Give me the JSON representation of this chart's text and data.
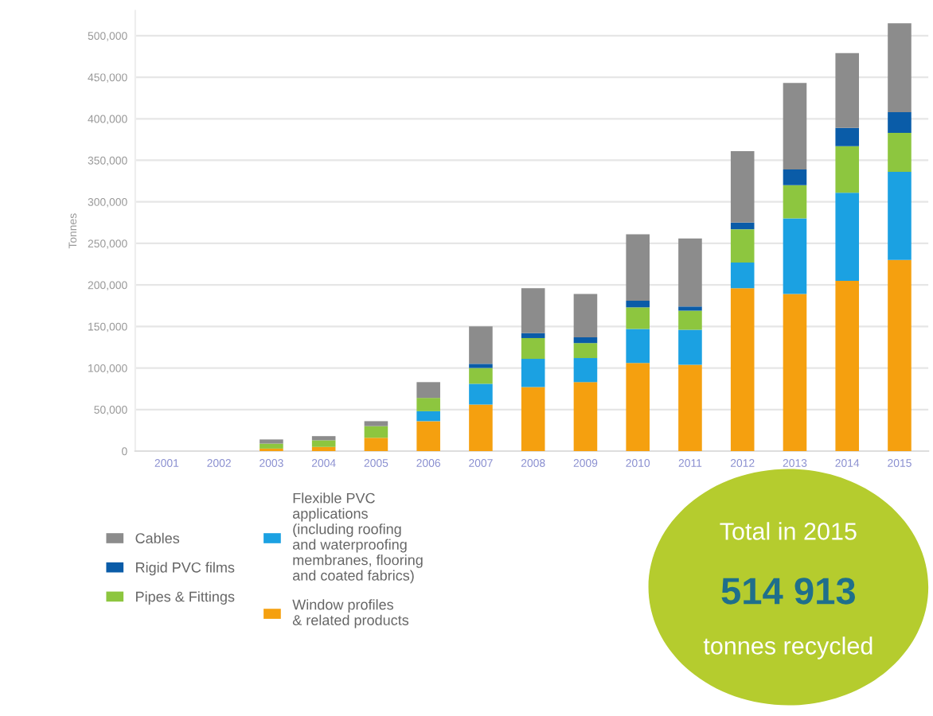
{
  "chart_data": {
    "type": "bar",
    "stacked": true,
    "ylabel": "Tonnes",
    "categories": [
      "2001",
      "2002",
      "2003",
      "2004",
      "2005",
      "2006",
      "2007",
      "2008",
      "2009",
      "2010",
      "2011",
      "2012",
      "2013",
      "2014",
      "2015"
    ],
    "series": [
      {
        "name": "Window profiles\n& related products",
        "color": "#f5a00f",
        "values": [
          0,
          0,
          3000,
          5000,
          16000,
          36000,
          56000,
          77000,
          83000,
          106000,
          104000,
          196000,
          189000,
          205000,
          230000
        ]
      },
      {
        "name": "Flexible PVC\napplications\n(including roofing\nand waterproofing\nmembranes, flooring\nand coated fabrics)",
        "color": "#1ba1e2",
        "values": [
          0,
          0,
          0,
          0,
          0,
          12000,
          25000,
          34000,
          29000,
          41000,
          42000,
          31000,
          91000,
          106000,
          106000
        ]
      },
      {
        "name": "Pipes & Fittings",
        "color": "#8dc63f",
        "values": [
          0,
          0,
          6000,
          8000,
          14000,
          16000,
          19000,
          25000,
          18000,
          26000,
          23000,
          40000,
          40000,
          56000,
          47000
        ]
      },
      {
        "name": "Rigid PVC films",
        "color": "#0a5ca8",
        "values": [
          0,
          0,
          0,
          0,
          0,
          0,
          5000,
          6000,
          7000,
          8000,
          5000,
          8000,
          19000,
          22000,
          25000
        ]
      },
      {
        "name": "Cables",
        "color": "#8c8c8c",
        "values": [
          0,
          0,
          5000,
          5000,
          6000,
          19000,
          45000,
          54000,
          52000,
          80000,
          82000,
          86000,
          104000,
          90000,
          107000
        ]
      }
    ],
    "ylim": [
      0,
      530000
    ],
    "yticks": [
      {
        "value": 0,
        "label": "0"
      },
      {
        "value": 50000,
        "label": "50,000"
      },
      {
        "value": 100000,
        "label": "100,000"
      },
      {
        "value": 150000,
        "label": "150,000"
      },
      {
        "value": 200000,
        "label": "200,000"
      },
      {
        "value": 250000,
        "label": "250,000"
      },
      {
        "value": 300000,
        "label": "300,000"
      },
      {
        "value": 350000,
        "label": "350,000"
      },
      {
        "value": 400000,
        "label": "400,000"
      },
      {
        "value": 450000,
        "label": "450,000"
      },
      {
        "value": 500000,
        "label": "500,000"
      }
    ],
    "grid": "y",
    "legend": "bottom left",
    "annotations": [
      "Total in 2015",
      "514 913",
      "tonnes recycled"
    ]
  }
}
